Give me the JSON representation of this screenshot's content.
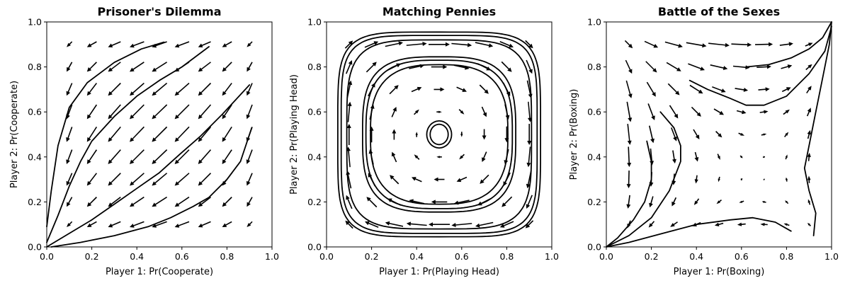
{
  "chart_data": [
    {
      "type": "quiver",
      "game": "pd",
      "title": "Prisoner's Dilemma",
      "xlabel": "Player 1: Pr(Cooperate)",
      "ylabel": "Player 2: Pr(Cooperate)",
      "xlim": [
        0,
        1
      ],
      "ylim": [
        0,
        1
      ],
      "xticks": [
        "0.0",
        "0.2",
        "0.4",
        "0.6",
        "0.8",
        "1.0"
      ],
      "yticks": [
        "0.0",
        "0.2",
        "0.4",
        "0.6",
        "0.8",
        "1.0"
      ],
      "grid": false,
      "vector_grid": [
        0.1,
        0.2,
        0.3,
        0.4,
        0.5,
        0.6,
        0.7,
        0.8,
        0.9
      ],
      "trajectories": [
        [
          [
            0.0,
            0.09
          ],
          [
            0.02,
            0.25
          ],
          [
            0.05,
            0.45
          ],
          [
            0.1,
            0.62
          ],
          [
            0.18,
            0.73
          ],
          [
            0.3,
            0.82
          ],
          [
            0.42,
            0.88
          ],
          [
            0.52,
            0.91
          ]
        ],
        [
          [
            0.0,
            0.02
          ],
          [
            0.05,
            0.14
          ],
          [
            0.1,
            0.27
          ],
          [
            0.15,
            0.38
          ],
          [
            0.2,
            0.47
          ],
          [
            0.3,
            0.58
          ],
          [
            0.4,
            0.67
          ],
          [
            0.5,
            0.74
          ],
          [
            0.6,
            0.8
          ],
          [
            0.72,
            0.89
          ]
        ],
        [
          [
            0.0,
            0.0
          ],
          [
            0.1,
            0.06
          ],
          [
            0.2,
            0.12
          ],
          [
            0.3,
            0.19
          ],
          [
            0.4,
            0.26
          ],
          [
            0.5,
            0.33
          ],
          [
            0.6,
            0.42
          ],
          [
            0.68,
            0.49
          ],
          [
            0.78,
            0.59
          ],
          [
            0.9,
            0.72
          ]
        ],
        [
          [
            0.02,
            0.0
          ],
          [
            0.15,
            0.02
          ],
          [
            0.3,
            0.05
          ],
          [
            0.45,
            0.09
          ],
          [
            0.55,
            0.13
          ],
          [
            0.65,
            0.18
          ],
          [
            0.72,
            0.22
          ],
          [
            0.8,
            0.3
          ],
          [
            0.86,
            0.38
          ],
          [
            0.91,
            0.53
          ]
        ]
      ]
    },
    {
      "type": "quiver",
      "game": "mp",
      "title": "Matching Pennies",
      "xlabel": "Player 1: Pr(Playing Head)",
      "ylabel": "Player 2: Pr(Playing Head)",
      "xlim": [
        0,
        1
      ],
      "ylim": [
        0,
        1
      ],
      "xticks": [
        "0.0",
        "0.2",
        "0.4",
        "0.6",
        "0.8",
        "1.0"
      ],
      "yticks": [
        "0.0",
        "0.2",
        "0.4",
        "0.6",
        "0.8",
        "1.0"
      ],
      "grid": false,
      "vector_grid": [
        0.1,
        0.2,
        0.3,
        0.4,
        0.5,
        0.6,
        0.7,
        0.8,
        0.9
      ],
      "trajectories": [
        {
          "center": [
            0.5,
            0.5
          ],
          "rx": 0.45,
          "ry": 0.455,
          "p": 5.0
        },
        {
          "center": [
            0.5,
            0.5
          ],
          "rx": 0.435,
          "ry": 0.44,
          "p": 5.0
        },
        {
          "center": [
            0.5,
            0.5
          ],
          "rx": 0.41,
          "ry": 0.42,
          "p": 4.2
        },
        {
          "center": [
            0.5,
            0.5
          ],
          "rx": 0.34,
          "ry": 0.345,
          "p": 3.2
        },
        {
          "center": [
            0.5,
            0.5
          ],
          "rx": 0.325,
          "ry": 0.33,
          "p": 3.0
        },
        {
          "center": [
            0.5,
            0.5
          ],
          "rx": 0.305,
          "ry": 0.31,
          "p": 2.8
        },
        {
          "center": [
            0.5,
            0.5
          ],
          "rx": 0.055,
          "ry": 0.06,
          "p": 2.0
        },
        {
          "center": [
            0.5,
            0.5
          ],
          "rx": 0.04,
          "ry": 0.045,
          "p": 2.0
        }
      ]
    },
    {
      "type": "quiver",
      "game": "bos",
      "title": "Battle of the Sexes",
      "xlabel": "Player 1: Pr(Boxing)",
      "ylabel": "Player 2: Pr(Boxing)",
      "xlim": [
        0,
        1
      ],
      "ylim": [
        0,
        1
      ],
      "xticks": [
        "0.0",
        "0.2",
        "0.4",
        "0.6",
        "0.8",
        "1.0"
      ],
      "yticks": [
        "0.0",
        "0.2",
        "0.4",
        "0.6",
        "0.8",
        "1.0"
      ],
      "grid": false,
      "vector_grid": [
        0.1,
        0.2,
        0.3,
        0.4,
        0.5,
        0.6,
        0.7,
        0.8,
        0.9
      ],
      "trajectories": [
        [
          [
            0.0,
            0.0
          ],
          [
            0.05,
            0.04
          ],
          [
            0.12,
            0.12
          ],
          [
            0.17,
            0.2
          ],
          [
            0.2,
            0.3
          ],
          [
            0.2,
            0.38
          ],
          [
            0.18,
            0.47
          ]
        ],
        [
          [
            0.0,
            0.0
          ],
          [
            0.1,
            0.05
          ],
          [
            0.2,
            0.13
          ],
          [
            0.28,
            0.25
          ],
          [
            0.33,
            0.38
          ],
          [
            0.33,
            0.45
          ],
          [
            0.3,
            0.53
          ],
          [
            0.24,
            0.6
          ]
        ],
        [
          [
            0.0,
            0.0
          ],
          [
            0.1,
            0.02
          ],
          [
            0.25,
            0.06
          ],
          [
            0.4,
            0.1
          ],
          [
            0.55,
            0.12
          ],
          [
            0.65,
            0.13
          ],
          [
            0.75,
            0.11
          ],
          [
            0.82,
            0.07
          ]
        ],
        [
          [
            0.37,
            0.74
          ],
          [
            0.45,
            0.7
          ],
          [
            0.55,
            0.66
          ],
          [
            0.62,
            0.63
          ],
          [
            0.7,
            0.63
          ],
          [
            0.8,
            0.67
          ],
          [
            0.9,
            0.77
          ],
          [
            0.97,
            0.87
          ],
          [
            1.0,
            0.98
          ]
        ],
        [
          [
            0.62,
            0.8
          ],
          [
            0.72,
            0.81
          ],
          [
            0.82,
            0.84
          ],
          [
            0.9,
            0.88
          ],
          [
            0.96,
            0.93
          ],
          [
            1.0,
            1.0
          ]
        ],
        [
          [
            0.92,
            0.05
          ],
          [
            0.93,
            0.15
          ],
          [
            0.9,
            0.25
          ],
          [
            0.88,
            0.35
          ],
          [
            0.9,
            0.45
          ],
          [
            0.93,
            0.6
          ],
          [
            0.96,
            0.75
          ],
          [
            0.99,
            0.9
          ],
          [
            1.0,
            1.0
          ]
        ]
      ]
    }
  ]
}
